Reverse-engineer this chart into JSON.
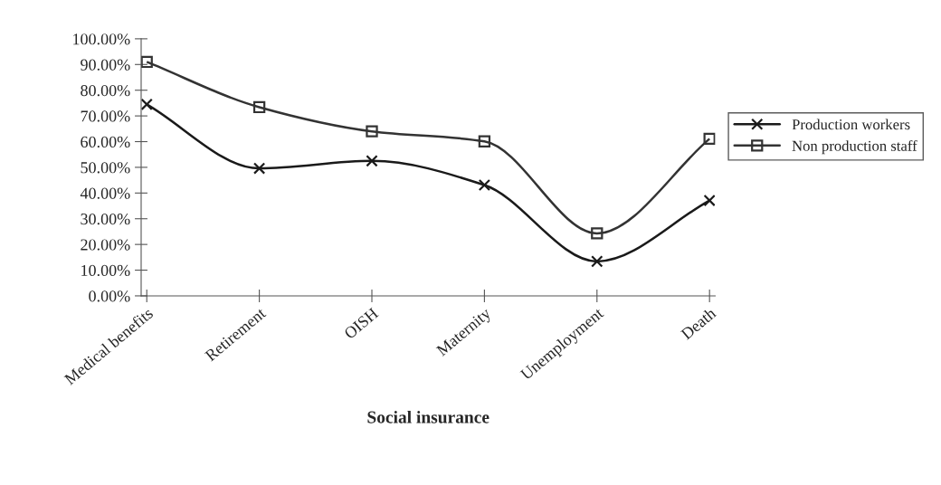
{
  "chart_data": {
    "type": "line",
    "xlabel": "Social insurance",
    "categories": [
      "Medical benefits",
      "Retirement",
      "OISH",
      "Maternity",
      "Unemployment",
      "Death"
    ],
    "series": [
      {
        "name": "Production workers",
        "color": "#1a1a1a",
        "marker": "cross",
        "values": [
          74.5,
          49.6,
          52.5,
          43.1,
          13.4,
          37.1
        ]
      },
      {
        "name": "Non production staff",
        "color": "#333333",
        "marker": "square",
        "values": [
          91,
          73.4,
          64,
          60.1,
          24.3,
          61.1
        ]
      }
    ],
    "ylim": [
      0,
      100
    ],
    "yticks": [
      {
        "value": 0,
        "label": "0.00%"
      },
      {
        "value": 10,
        "label": "10.00%"
      },
      {
        "value": 20,
        "label": "20.00%"
      },
      {
        "value": 30,
        "label": "30.00%"
      },
      {
        "value": 40,
        "label": "40.00%"
      },
      {
        "value": 50,
        "label": "50.00%"
      },
      {
        "value": 60,
        "label": "60.00%"
      },
      {
        "value": 70,
        "label": "70.00%"
      },
      {
        "value": 80,
        "label": "80.00%"
      },
      {
        "value": 90,
        "label": "90.00%"
      },
      {
        "value": 100,
        "label": "100.00%"
      }
    ],
    "grid": false,
    "legend": "right",
    "line_style": "solid"
  }
}
